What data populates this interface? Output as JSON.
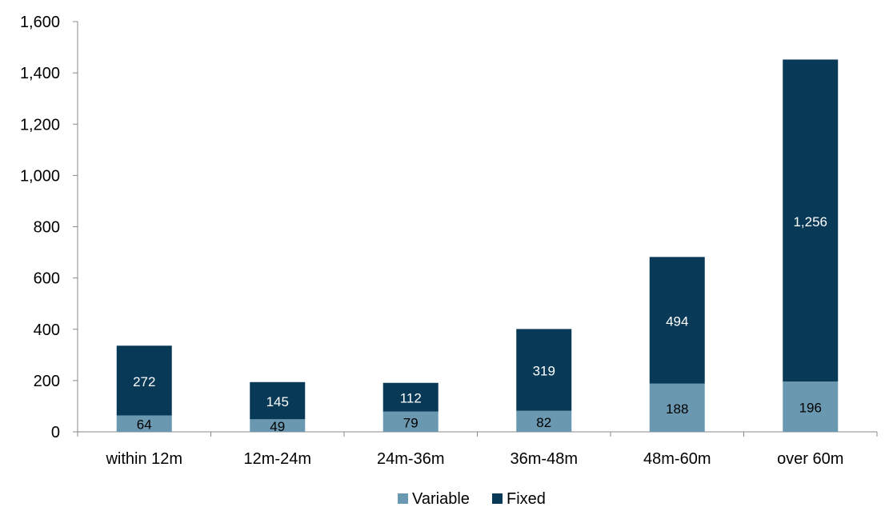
{
  "chart_data": {
    "type": "bar",
    "stacked": true,
    "categories": [
      "within 12m",
      "12m-24m",
      "24m-36m",
      "36m-48m",
      "48m-60m",
      "over 60m"
    ],
    "series": [
      {
        "name": "Variable",
        "values": [
          64,
          49,
          79,
          82,
          188,
          196
        ],
        "labels": [
          "64",
          "49",
          "79",
          "82",
          "188",
          "196"
        ],
        "color": "#6a98b0",
        "label_color": "#000000"
      },
      {
        "name": "Fixed",
        "values": [
          272,
          145,
          112,
          319,
          494,
          1256
        ],
        "labels": [
          "272",
          "145",
          "112",
          "319",
          "494",
          "1,256"
        ],
        "color": "#083a57",
        "label_color": "#ffffff"
      }
    ],
    "ylim": [
      0,
      1600
    ],
    "yticks": [
      0,
      200,
      400,
      600,
      800,
      1000,
      1200,
      1400,
      1600
    ],
    "ytick_labels": [
      "0",
      "200",
      "400",
      "600",
      "800",
      "1,000",
      "1,200",
      "1,400",
      "1,600"
    ],
    "title": "",
    "xlabel": "",
    "ylabel": "",
    "grid": false,
    "legend_position": "bottom-center"
  }
}
